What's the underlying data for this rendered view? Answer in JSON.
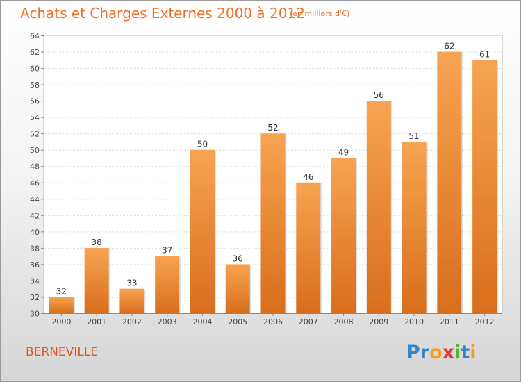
{
  "header": {
    "title": "Achats et Charges Externes 2000 à 2012",
    "subtitle": "(en milliers d'€)"
  },
  "footer": {
    "commune": "BERNEVILLE",
    "brand": "Proxiti"
  },
  "colors": {
    "bar_top": "#f7a452",
    "bar_bottom": "#d86e1c",
    "title": "#f0722a",
    "commune": "#e2541c"
  },
  "chart_data": {
    "type": "bar",
    "title": "Achats et Charges Externes 2000 à 2012",
    "subtitle": "(en milliers d'€)",
    "xlabel": "",
    "ylabel": "",
    "categories": [
      "2000",
      "2001",
      "2002",
      "2003",
      "2004",
      "2005",
      "2006",
      "2007",
      "2008",
      "2009",
      "2010",
      "2011",
      "2012"
    ],
    "values": [
      32,
      38,
      33,
      37,
      50,
      36,
      52,
      46,
      49,
      56,
      51,
      62,
      61
    ],
    "ylim": [
      30,
      64
    ],
    "yticks": [
      30,
      32,
      34,
      36,
      38,
      40,
      42,
      44,
      46,
      48,
      50,
      52,
      54,
      56,
      58,
      60,
      62,
      64
    ],
    "grid": true,
    "data_labels": true
  }
}
